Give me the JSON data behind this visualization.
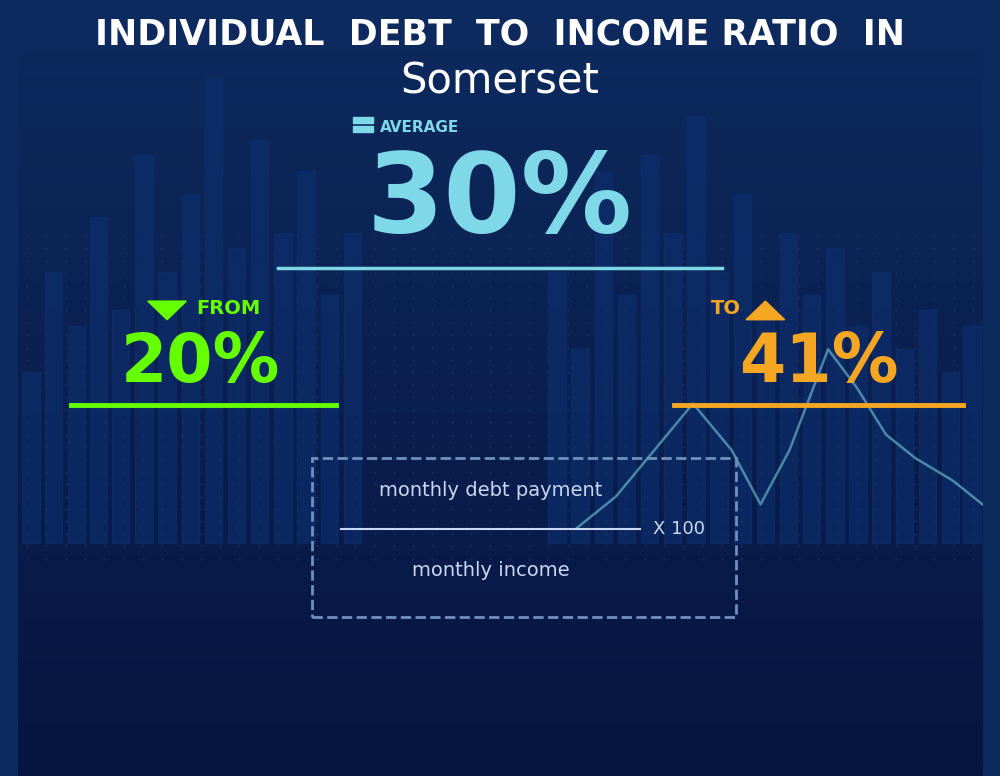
{
  "title_line1": "INDIVIDUAL  DEBT  TO  INCOME RATIO  IN",
  "title_line2": "Somerset",
  "avg_label": "AVERAGE",
  "avg_value": "30%",
  "from_label": "FROM",
  "from_value": "20%",
  "to_label": "TO",
  "to_value": "41%",
  "formula_top": "monthly debt payment",
  "formula_bottom": "monthly income",
  "formula_multiplier": "X 100",
  "bg_color_top": "#0d2a5e",
  "bg_color_bottom": "#081848",
  "title1_color": "#ffffff",
  "title2_color": "#ffffff",
  "avg_label_color": "#7fd8e8",
  "avg_value_color": "#7fd8e8",
  "avg_underline_color": "#7fd8e8",
  "from_arrow_color": "#66ff00",
  "from_label_color": "#66ff00",
  "from_value_color": "#66ff00",
  "from_underline_color": "#66ff00",
  "to_arrow_color": "#f5a623",
  "to_label_color": "#f5a623",
  "to_value_color": "#f5a623",
  "to_underline_color": "#f5a623",
  "formula_color": "#c8d8f0",
  "formula_border_color": "#7090c0",
  "grid_dot_color": "#1a3a6e"
}
